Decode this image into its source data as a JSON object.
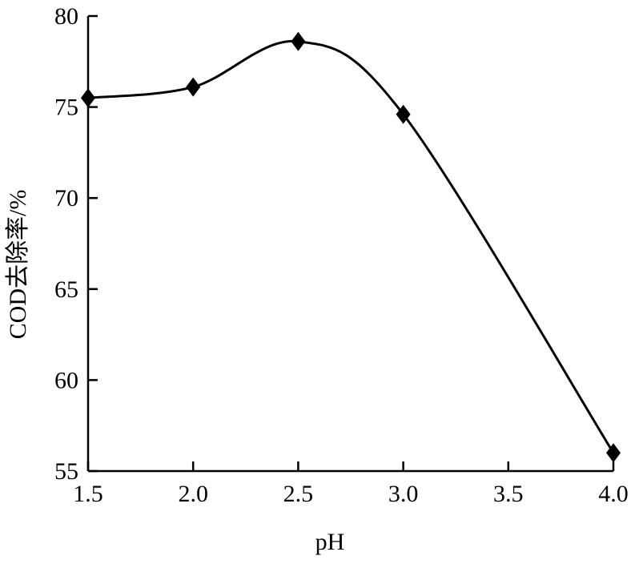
{
  "chart_data": {
    "type": "line",
    "title": "",
    "xlabel": "pH",
    "ylabel": "COD去除率/%",
    "xlim": [
      1.5,
      4.0
    ],
    "ylim": [
      55,
      80
    ],
    "xticks": [
      "1.5",
      "2.0",
      "2.5",
      "3.0",
      "3.5",
      "4.0"
    ],
    "yticks": [
      "55",
      "60",
      "65",
      "70",
      "75",
      "80"
    ],
    "grid": false,
    "marker": "diamond",
    "series": [
      {
        "x": [
          1.5,
          2.0,
          2.5,
          3.0,
          4.0
        ],
        "y": [
          75.5,
          76.1,
          78.6,
          74.6,
          56.0
        ]
      }
    ]
  }
}
